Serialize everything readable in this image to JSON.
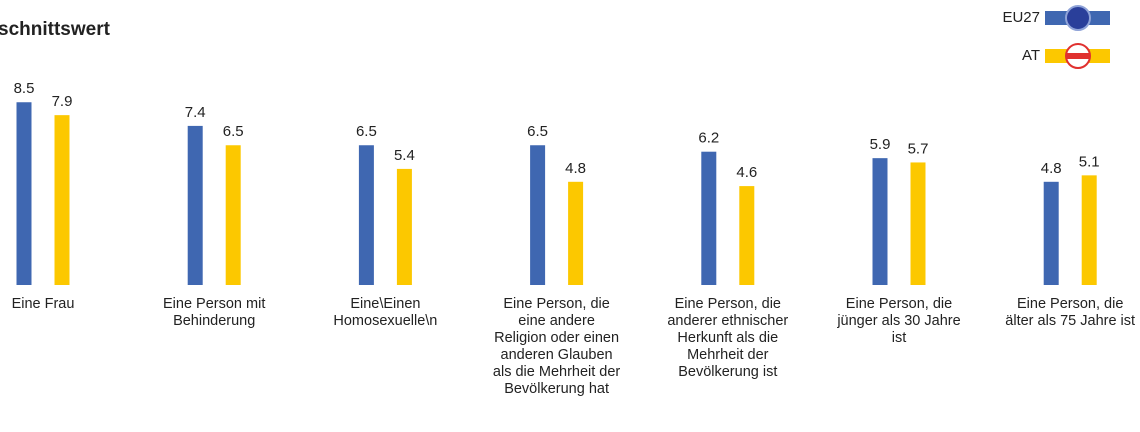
{
  "chart_data": {
    "type": "bar",
    "title": "schnittswert",
    "categories": [
      "Eine Frau",
      "Eine Person mit Behinderung",
      "Eine\\Einen Homosexuelle\\n",
      "Eine Person, die eine andere Religion oder einen anderen Glauben als die Mehrheit der Bevölkerung hat",
      "Eine Person, die anderer ethnischer Herkunft als die Mehrheit der Bevölkerung ist",
      "Eine Person, die jünger als 30 Jahre ist",
      "Eine Person, die älter als 75 Jahre ist"
    ],
    "series": [
      {
        "name": "EU27",
        "color": "#3f67b1",
        "values": [
          8.5,
          7.4,
          6.5,
          6.5,
          6.2,
          5.9,
          4.8
        ]
      },
      {
        "name": "AT",
        "color": "#fcc800",
        "values": [
          7.9,
          6.5,
          5.4,
          4.8,
          4.6,
          5.7,
          5.1
        ]
      }
    ]
  }
}
